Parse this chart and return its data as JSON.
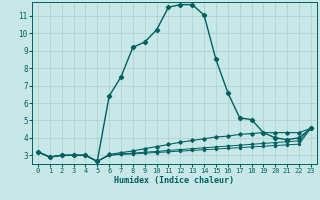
{
  "title": "",
  "xlabel": "Humidex (Indice chaleur)",
  "xlim": [
    -0.5,
    23.5
  ],
  "ylim": [
    2.5,
    11.8
  ],
  "yticks": [
    3,
    4,
    5,
    6,
    7,
    8,
    9,
    10,
    11
  ],
  "xticks": [
    0,
    1,
    2,
    3,
    4,
    5,
    6,
    7,
    8,
    9,
    10,
    11,
    12,
    13,
    14,
    15,
    16,
    17,
    18,
    19,
    20,
    21,
    22,
    23
  ],
  "bg_color": "#c8e8e8",
  "grid_color": "#b0cece",
  "line_color": "#006060",
  "series": [
    [
      3.2,
      2.9,
      3.0,
      3.0,
      3.0,
      2.65,
      6.4,
      7.5,
      9.2,
      9.5,
      10.2,
      11.5,
      11.65,
      11.65,
      11.05,
      8.5,
      6.6,
      5.15,
      5.05,
      4.3,
      4.0,
      3.9,
      4.0,
      4.55
    ],
    [
      3.2,
      2.9,
      3.0,
      3.0,
      3.0,
      2.65,
      3.05,
      3.15,
      3.25,
      3.38,
      3.5,
      3.62,
      3.75,
      3.85,
      3.95,
      4.05,
      4.1,
      4.2,
      4.25,
      4.3,
      4.3,
      4.3,
      4.3,
      4.55
    ],
    [
      3.2,
      2.9,
      3.0,
      3.0,
      3.0,
      2.65,
      3.0,
      3.08,
      3.12,
      3.18,
      3.22,
      3.28,
      3.33,
      3.38,
      3.43,
      3.48,
      3.53,
      3.58,
      3.63,
      3.68,
      3.73,
      3.78,
      3.83,
      4.55
    ],
    [
      3.2,
      2.9,
      3.0,
      3.0,
      3.0,
      2.65,
      3.0,
      3.05,
      3.08,
      3.12,
      3.16,
      3.2,
      3.24,
      3.28,
      3.32,
      3.36,
      3.4,
      3.44,
      3.48,
      3.52,
      3.56,
      3.6,
      3.64,
      4.55
    ]
  ]
}
